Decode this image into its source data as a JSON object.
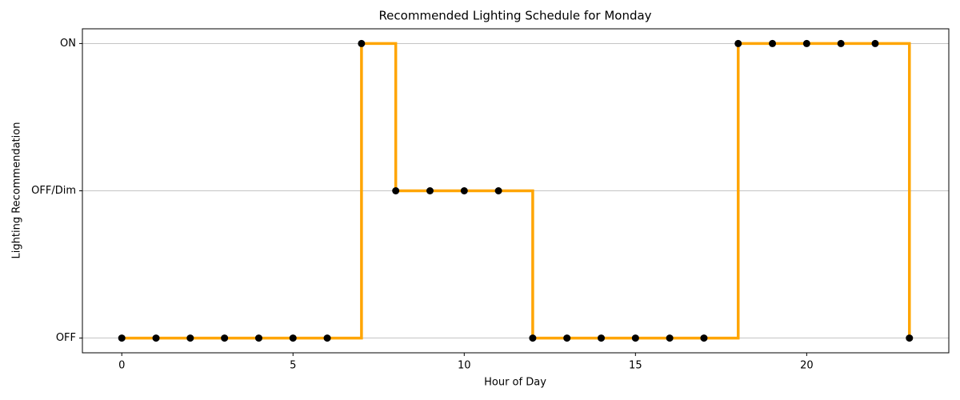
{
  "chart_data": {
    "type": "line",
    "drawstyle": "steps-post",
    "title": "Recommended Lighting Schedule for Monday",
    "xlabel": "Hour of Day",
    "ylabel": "Lighting Recommendation",
    "x": [
      0,
      1,
      2,
      3,
      4,
      5,
      6,
      7,
      8,
      9,
      10,
      11,
      12,
      13,
      14,
      15,
      16,
      17,
      18,
      19,
      20,
      21,
      22,
      23
    ],
    "series": [
      {
        "color": "#ffa500",
        "marker_color": "#000000",
        "values": [
          0,
          0,
          0,
          0,
          0,
          0,
          0,
          2,
          1,
          1,
          1,
          1,
          0,
          0,
          0,
          0,
          0,
          0,
          2,
          2,
          2,
          2,
          2,
          0
        ]
      }
    ],
    "xlim": [
      -1.15,
      24.15
    ],
    "xticks": [
      0,
      5,
      10,
      15,
      20
    ],
    "ylim": [
      -0.1,
      2.1
    ],
    "yticks": [
      {
        "value": 0,
        "label": "OFF"
      },
      {
        "value": 1,
        "label": "OFF/Dim"
      },
      {
        "value": 2,
        "label": "ON"
      }
    ],
    "grid": "y"
  }
}
